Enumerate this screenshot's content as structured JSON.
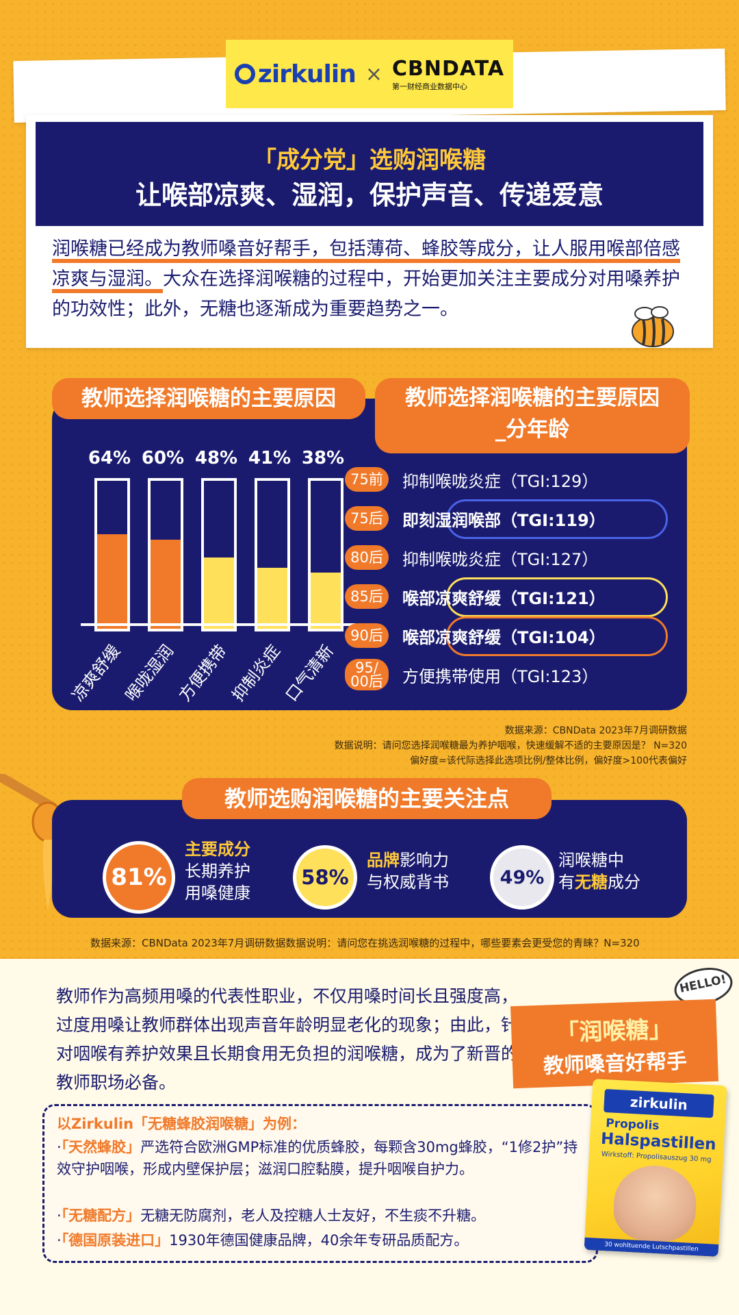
{
  "header": {
    "brand_zirkulin": "zirkulin",
    "separator": "×",
    "brand_cbndata": "CBNDATA",
    "brand_cbndata_sub": "第一财经商业数据中心"
  },
  "title": {
    "line1": "「成分党」选购润喉糖",
    "line2": "让喉部凉爽、湿润，保护声音、传递爱意"
  },
  "intro": {
    "highlight": "润喉糖已经成为教师嗓音好帮手，包括薄荷、蜂胶等成分，让人服用喉部倍感凉爽与湿润。",
    "rest": "大众在选择润喉糖的过程中，开始更加关注主要成分对用嗓养护的功效性；此外，无糖也逐渐成为重要趋势之一。"
  },
  "section1": {
    "left_heading": "教师选择润喉糖的主要原因",
    "right_heading_line1": "教师选择润喉糖的主要原因",
    "right_heading_line2": "_分年龄"
  },
  "chart_data": {
    "type": "bar",
    "title": "教师选择润喉糖的主要原因",
    "categories": [
      "凉爽舒缓",
      "喉咙湿润",
      "方便携带",
      "抑制炎症",
      "口气清新"
    ],
    "values": [
      64,
      60,
      48,
      41,
      38
    ],
    "value_labels": [
      "64%",
      "60%",
      "48%",
      "41%",
      "38%"
    ],
    "ylim": [
      0,
      100
    ],
    "colors": [
      "#f07a2a",
      "#f07a2a",
      "#ffe05a",
      "#ffe05a",
      "#ffe05a"
    ]
  },
  "age_rows": [
    {
      "age": "75前",
      "text": "抑制喉咙炎症（TGI:129）",
      "bold": false,
      "ring": ""
    },
    {
      "age": "75后",
      "text": "即刻湿润喉部（TGI:119）",
      "bold": true,
      "ring": "#4a63e8"
    },
    {
      "age": "80后",
      "text": "抑制喉咙炎症（TGI:127）",
      "bold": false,
      "ring": ""
    },
    {
      "age": "85后",
      "text": "喉部凉爽舒缓（TGI:121）",
      "bold": true,
      "ring": "#ffe05a"
    },
    {
      "age": "90后",
      "text": "喉部凉爽舒缓（TGI:104）",
      "bold": true,
      "ring": "#f07a2a"
    },
    {
      "age": "95/\n00后",
      "text": "方便携带使用（TGI:123）",
      "bold": false,
      "ring": ""
    }
  ],
  "notes1": {
    "line1": "数据来源：CBNData 2023年7月调研数据",
    "line2": "数据说明：请问您选择润喉糖最为养护咽喉，快速缓解不适的主要原因是？ N=320",
    "line3": "偏好度=该代际选择此选项比例/整体比例，偏好度>100代表偏好"
  },
  "section2": {
    "heading": "教师选购润喉糖的主要关注点",
    "items": [
      {
        "pct": "81%",
        "em": "主要成分",
        "line2": "长期养护",
        "line3": "用嗓健康"
      },
      {
        "pct": "58%",
        "em": "品牌",
        "rest1": "影响力",
        "line2": "与权威背书"
      },
      {
        "pct": "49%",
        "line1": "润喉糖中",
        "pre2": "有",
        "em": "无糖",
        "post2": "成分"
      }
    ],
    "source": "数据来源：CBNData 2023年7月调研数据数据说明：请问您在挑选润喉糖的过程中，哪些要素会更受您的青睐？N=320"
  },
  "para": "教师作为高频用嗓的代表性职业，不仅用嗓时间长且强度高，过度用嗓让教师群体出现声音年龄明显老化的现象；由此，针对咽喉有养护效果且长期食用无负担的润喉糖，成为了新晋的教师职场必备。",
  "banner": {
    "hello": "HELLO!",
    "line1": "「润喉糖」",
    "line2": "教师嗓音好帮手"
  },
  "example": {
    "heading": "以Zirkulin「无糖蜂胶润喉糖」为例：",
    "items": [
      {
        "bullet": "·",
        "em": "「天然蜂胶」",
        "text": "严选符合欧洲GMP标准的优质蜂胶，每颗含30mg蜂胶，“1修2护”持效守护咽喉，形成内壁保护层；滋润口腔黏膜，提升咽喉自护力。"
      },
      {
        "bullet": "·",
        "em": "「无糖配方」",
        "text": "无糖无防腐剂，老人及控糖人士友好，不生痰不升糖。"
      },
      {
        "bullet": "·",
        "em": "「德国原装进口」",
        "text": "1930年德国健康品牌，40余年专研品质配方。"
      }
    ]
  },
  "package": {
    "logo": "zirkulin",
    "t1": "Propolis",
    "t2": "Halspastillen",
    "t3": "Wirkstoff: Propolisauszug 30 mg",
    "foot": "30 wohltuende Lutschpastillen"
  }
}
